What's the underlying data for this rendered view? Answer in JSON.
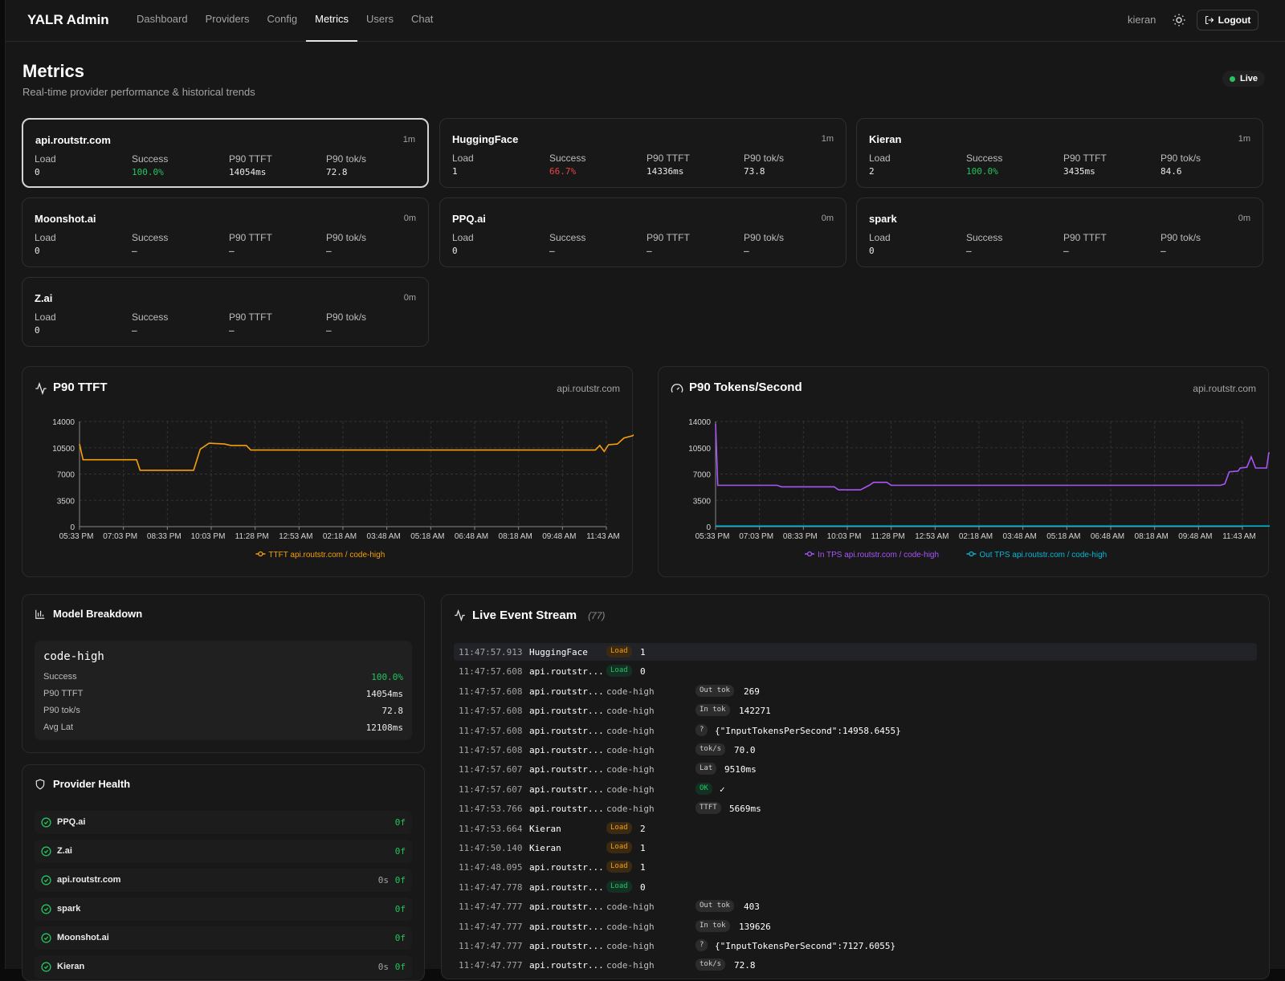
{
  "app": {
    "title": "YALR Admin"
  },
  "nav": [
    "Dashboard",
    "Providers",
    "Config",
    "Metrics",
    "Users",
    "Chat"
  ],
  "nav_active": "Metrics",
  "header": {
    "user": "kieran",
    "logout": "Logout"
  },
  "page": {
    "title": "Metrics",
    "subtitle": "Real-time provider performance & historical trends",
    "live": "Live"
  },
  "stat_labels": {
    "load": "Load",
    "success": "Success",
    "ttft": "P90 TTFT",
    "tps": "P90 tok/s"
  },
  "providers": [
    {
      "name": "api.routstr.com",
      "age": "1m",
      "load": "0",
      "success": "100.0%",
      "ttft": "14054ms",
      "tps": "72.8",
      "success_status": "good",
      "selected": true
    },
    {
      "name": "HuggingFace",
      "age": "1m",
      "load": "1",
      "success": "66.7%",
      "ttft": "14336ms",
      "tps": "73.8",
      "success_status": "bad"
    },
    {
      "name": "Kieran",
      "age": "1m",
      "load": "2",
      "success": "100.0%",
      "ttft": "3435ms",
      "tps": "84.6",
      "success_status": "good"
    },
    {
      "name": "Moonshot.ai",
      "age": "0m",
      "load": "0",
      "success": "–",
      "ttft": "–",
      "tps": "–"
    },
    {
      "name": "PPQ.ai",
      "age": "0m",
      "load": "0",
      "success": "–",
      "ttft": "–",
      "tps": "–"
    },
    {
      "name": "spark",
      "age": "0m",
      "load": "0",
      "success": "–",
      "ttft": "–",
      "tps": "–"
    },
    {
      "name": "Z.ai",
      "age": "0m",
      "load": "0",
      "success": "–",
      "ttft": "–",
      "tps": "–"
    }
  ],
  "charts": {
    "ttft": {
      "title": "P90 TTFT",
      "provider": "api.routstr.com"
    },
    "tps": {
      "title": "P90 Tokens/Second",
      "provider": "api.routstr.com"
    }
  },
  "chart_data": [
    {
      "type": "line",
      "title": "P90 TTFT",
      "x": [
        "05:33 PM",
        "07:03 PM",
        "08:33 PM",
        "10:03 PM",
        "11:28 PM",
        "12:53 AM",
        "02:18 AM",
        "03:48 AM",
        "05:18 AM",
        "06:48 AM",
        "08:18 AM",
        "09:48 AM",
        "11:43 AM"
      ],
      "yticks": [
        0,
        3500,
        7000,
        10500,
        14000
      ],
      "ylim": [
        0,
        14000
      ],
      "legend_position": "bottom",
      "grid": true,
      "series": [
        {
          "name": "TTFT api.routstr.com / code-high",
          "color": "#f59e0b",
          "points": [
            [
              0,
              11000
            ],
            [
              0.08,
              8900
            ],
            [
              1.3,
              8900
            ],
            [
              1.38,
              7500
            ],
            [
              2.6,
              7500
            ],
            [
              2.75,
              10300
            ],
            [
              2.95,
              11100
            ],
            [
              3.3,
              11000
            ],
            [
              3.45,
              10800
            ],
            [
              3.8,
              10800
            ],
            [
              3.9,
              10200
            ],
            [
              11.75,
              10200
            ],
            [
              11.85,
              10800
            ],
            [
              11.95,
              10000
            ],
            [
              12.05,
              10900
            ],
            [
              12.25,
              11000
            ],
            [
              12.4,
              11800
            ],
            [
              12.6,
              12100
            ],
            [
              12.75,
              12800
            ],
            [
              12.85,
              14100
            ]
          ]
        }
      ]
    },
    {
      "type": "line",
      "title": "P90 Tokens/Second",
      "x": [
        "05:33 PM",
        "07:03 PM",
        "08:33 PM",
        "10:03 PM",
        "11:28 PM",
        "12:53 AM",
        "02:18 AM",
        "03:48 AM",
        "05:18 AM",
        "06:48 AM",
        "08:18 AM",
        "09:48 AM",
        "11:43 AM"
      ],
      "yticks": [
        0,
        3500,
        7000,
        10500,
        14000
      ],
      "ylim": [
        0,
        14000
      ],
      "legend_position": "bottom",
      "grid": true,
      "series": [
        {
          "name": "In TPS api.routstr.com / code-high",
          "color": "#a855f7",
          "points": [
            [
              0,
              13700
            ],
            [
              0.05,
              5500
            ],
            [
              1.4,
              5500
            ],
            [
              1.5,
              5300
            ],
            [
              2.7,
              5300
            ],
            [
              2.8,
              4900
            ],
            [
              3.3,
              4900
            ],
            [
              3.5,
              5500
            ],
            [
              3.6,
              5900
            ],
            [
              3.9,
              5900
            ],
            [
              4.0,
              5500
            ],
            [
              11.5,
              5500
            ],
            [
              11.6,
              5700
            ],
            [
              11.7,
              7300
            ],
            [
              11.9,
              7400
            ],
            [
              11.95,
              7800
            ],
            [
              12.1,
              7900
            ],
            [
              12.2,
              9300
            ],
            [
              12.3,
              7800
            ],
            [
              12.55,
              7800
            ],
            [
              12.6,
              9800
            ],
            [
              12.75,
              9900
            ],
            [
              12.8,
              10200
            ]
          ]
        },
        {
          "name": "Out TPS api.routstr.com / code-high",
          "color": "#06b6d4",
          "points": [
            [
              0,
              80
            ],
            [
              12.8,
              80
            ]
          ]
        }
      ]
    }
  ],
  "model_breakdown": {
    "title": "Model Breakdown",
    "model": "code-high",
    "rows": [
      {
        "label": "Success",
        "value": "100.0%"
      },
      {
        "label": "P90 TTFT",
        "value": "14054ms"
      },
      {
        "label": "P90 tok/s",
        "value": "72.8"
      },
      {
        "label": "Avg Lat",
        "value": "12108ms"
      }
    ]
  },
  "provider_health": {
    "title": "Provider Health",
    "rows": [
      {
        "name": "PPQ.ai",
        "age": "",
        "fail": "0f"
      },
      {
        "name": "Z.ai",
        "age": "",
        "fail": "0f"
      },
      {
        "name": "api.routstr.com",
        "age": "0s",
        "fail": "0f"
      },
      {
        "name": "spark",
        "age": "",
        "fail": "0f"
      },
      {
        "name": "Moonshot.ai",
        "age": "",
        "fail": "0f"
      },
      {
        "name": "Kieran",
        "age": "0s",
        "fail": "0f"
      }
    ]
  },
  "live_stream": {
    "title": "Live Event Stream",
    "count": "(77)",
    "events": [
      {
        "time": "11:47:57.913",
        "provider": "HuggingFace",
        "model": "",
        "tag": "Load",
        "tag_kind": "load",
        "value": "1",
        "highlight": true
      },
      {
        "time": "11:47:57.608",
        "provider": "api.routstr...",
        "model": "",
        "tag": "Load",
        "tag_kind": "load0",
        "value": "0"
      },
      {
        "time": "11:47:57.608",
        "provider": "api.routstr...",
        "model": "code-high",
        "tag": "Out tok",
        "tag_kind": "plain",
        "value": "269"
      },
      {
        "time": "11:47:57.608",
        "provider": "api.routstr...",
        "model": "code-high",
        "tag": "In tok",
        "tag_kind": "plain",
        "value": "142271"
      },
      {
        "time": "11:47:57.608",
        "provider": "api.routstr...",
        "model": "code-high",
        "tag": "?",
        "tag_kind": "plain",
        "value": "{\"InputTokensPerSecond\":14958.6455}"
      },
      {
        "time": "11:47:57.608",
        "provider": "api.routstr...",
        "model": "code-high",
        "tag": "tok/s",
        "tag_kind": "plain",
        "value": "70.0"
      },
      {
        "time": "11:47:57.607",
        "provider": "api.routstr...",
        "model": "code-high",
        "tag": "Lat",
        "tag_kind": "plain",
        "value": "9510ms"
      },
      {
        "time": "11:47:57.607",
        "provider": "api.routstr...",
        "model": "code-high",
        "tag": "OK",
        "tag_kind": "ok",
        "value": "✓"
      },
      {
        "time": "11:47:53.766",
        "provider": "api.routstr...",
        "model": "code-high",
        "tag": "TTFT",
        "tag_kind": "plain",
        "value": "5669ms"
      },
      {
        "time": "11:47:53.664",
        "provider": "Kieran",
        "model": "",
        "tag": "Load",
        "tag_kind": "load",
        "value": "2"
      },
      {
        "time": "11:47:50.140",
        "provider": "Kieran",
        "model": "",
        "tag": "Load",
        "tag_kind": "load",
        "value": "1"
      },
      {
        "time": "11:47:48.095",
        "provider": "api.routstr...",
        "model": "",
        "tag": "Load",
        "tag_kind": "load",
        "value": "1"
      },
      {
        "time": "11:47:47.778",
        "provider": "api.routstr...",
        "model": "",
        "tag": "Load",
        "tag_kind": "load0",
        "value": "0"
      },
      {
        "time": "11:47:47.777",
        "provider": "api.routstr...",
        "model": "code-high",
        "tag": "Out tok",
        "tag_kind": "plain",
        "value": "403"
      },
      {
        "time": "11:47:47.777",
        "provider": "api.routstr...",
        "model": "code-high",
        "tag": "In tok",
        "tag_kind": "plain",
        "value": "139626"
      },
      {
        "time": "11:47:47.777",
        "provider": "api.routstr...",
        "model": "code-high",
        "tag": "?",
        "tag_kind": "plain",
        "value": "{\"InputTokensPerSecond\":7127.6055}"
      },
      {
        "time": "11:47:47.777",
        "provider": "api.routstr...",
        "model": "code-high",
        "tag": "tok/s",
        "tag_kind": "plain",
        "value": "72.8"
      }
    ]
  },
  "colors": {
    "accent_orange": "#f59e0b",
    "accent_purple": "#a855f7",
    "accent_cyan": "#06b6d4",
    "good": "#22c55e",
    "bad": "#ef4444"
  }
}
